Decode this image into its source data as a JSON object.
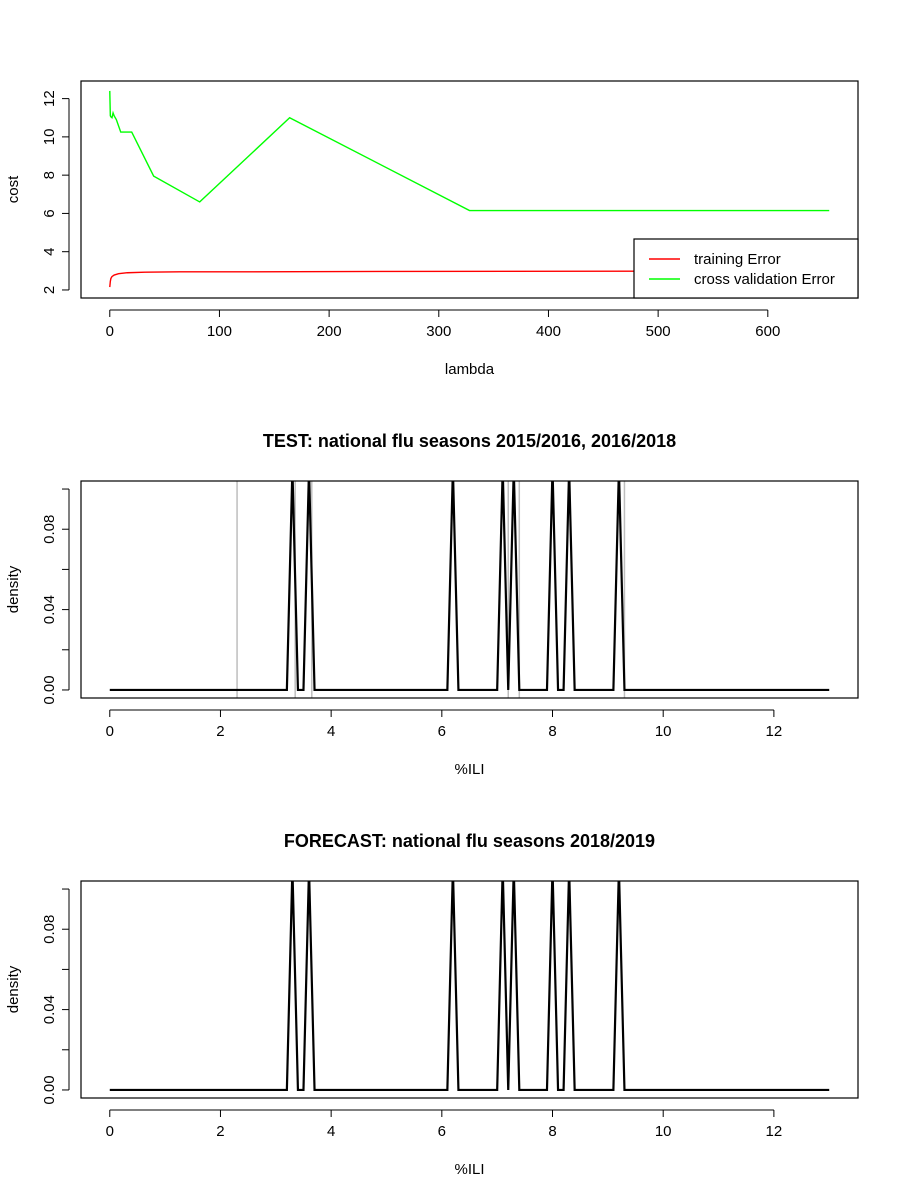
{
  "chart_data": [
    {
      "type": "line",
      "title": "",
      "xlabel": "lambda",
      "ylabel": "cost",
      "xlim": [
        0,
        656
      ],
      "ylim": [
        2,
        12.5
      ],
      "xticks": [
        0,
        100,
        200,
        300,
        400,
        500,
        600
      ],
      "yticks": [
        2,
        4,
        6,
        8,
        10,
        12
      ],
      "grid": false,
      "legend_position": "bottom-right",
      "series": [
        {
          "name": "training Error",
          "color": "#ff0000",
          "x": [
            0,
            0.5,
            1,
            2,
            4,
            8,
            16,
            32,
            64,
            128,
            256,
            512,
            656
          ],
          "y": [
            2.15,
            2.45,
            2.6,
            2.7,
            2.78,
            2.85,
            2.9,
            2.93,
            2.95,
            2.95,
            2.97,
            2.98,
            2.98
          ]
        },
        {
          "name": "cross validation Error",
          "color": "#00ff00",
          "x": [
            0,
            0.5,
            1,
            2,
            3,
            4,
            6,
            10,
            20,
            40,
            82,
            164,
            328,
            656
          ],
          "y": [
            12.4,
            11.1,
            11.05,
            11.0,
            11.25,
            11.1,
            10.9,
            10.25,
            10.25,
            7.95,
            6.6,
            11.0,
            6.15,
            6.15
          ]
        }
      ]
    },
    {
      "type": "line",
      "title": "TEST: national flu seasons 2015/2016, 2016/2018",
      "xlabel": "%ILI",
      "ylabel": "density",
      "xlim": [
        0,
        13
      ],
      "ylim": [
        0,
        0.1
      ],
      "xticks": [
        0,
        2,
        4,
        6,
        8,
        10,
        12
      ],
      "yticks": [
        0.0,
        0.02,
        0.04,
        0.06,
        0.08,
        0.1
      ],
      "ytick_labels": {
        "0": "0.00",
        "0.04": "0.04",
        "0.08": "0.08"
      },
      "grid": false,
      "reference_lines_x": [
        2.3,
        3.35,
        3.65,
        7.2,
        7.4,
        9.3
      ],
      "reference_line_color": "#bebebe",
      "series": [
        {
          "name": "",
          "color": "#000000",
          "x": [
            0,
            3.2,
            3.3,
            3.4,
            3.5,
            3.6,
            3.7,
            6.1,
            6.2,
            6.3,
            7.0,
            7.1,
            7.2,
            7.3,
            7.4,
            7.9,
            8.0,
            8.1,
            8.2,
            8.3,
            8.4,
            9.1,
            9.2,
            9.3,
            13
          ],
          "y": [
            0,
            0,
            0.11,
            0,
            0,
            0.11,
            0,
            0,
            0.11,
            0,
            0,
            0.11,
            0,
            0.11,
            0,
            0,
            0.11,
            0,
            0,
            0.11,
            0,
            0,
            0.11,
            0,
            0
          ]
        }
      ]
    },
    {
      "type": "line",
      "title": "FORECAST: national flu seasons 2018/2019",
      "xlabel": "%ILI",
      "ylabel": "density",
      "xlim": [
        0,
        13
      ],
      "ylim": [
        0,
        0.1
      ],
      "xticks": [
        0,
        2,
        4,
        6,
        8,
        10,
        12
      ],
      "yticks": [
        0.0,
        0.02,
        0.04,
        0.06,
        0.08,
        0.1
      ],
      "ytick_labels": {
        "0": "0.00",
        "0.04": "0.04",
        "0.08": "0.08"
      },
      "grid": false,
      "reference_lines_x": [],
      "reference_line_color": "#bebebe",
      "series": [
        {
          "name": "",
          "color": "#000000",
          "x": [
            0,
            3.2,
            3.3,
            3.4,
            3.5,
            3.6,
            3.7,
            6.1,
            6.2,
            6.3,
            7.0,
            7.1,
            7.2,
            7.3,
            7.4,
            7.9,
            8.0,
            8.1,
            8.2,
            8.3,
            8.4,
            9.1,
            9.2,
            9.3,
            13
          ],
          "y": [
            0,
            0,
            0.11,
            0,
            0,
            0.11,
            0,
            0,
            0.11,
            0,
            0,
            0.11,
            0,
            0.11,
            0,
            0,
            0.11,
            0,
            0,
            0.11,
            0,
            0,
            0.11,
            0,
            0
          ]
        }
      ]
    }
  ]
}
